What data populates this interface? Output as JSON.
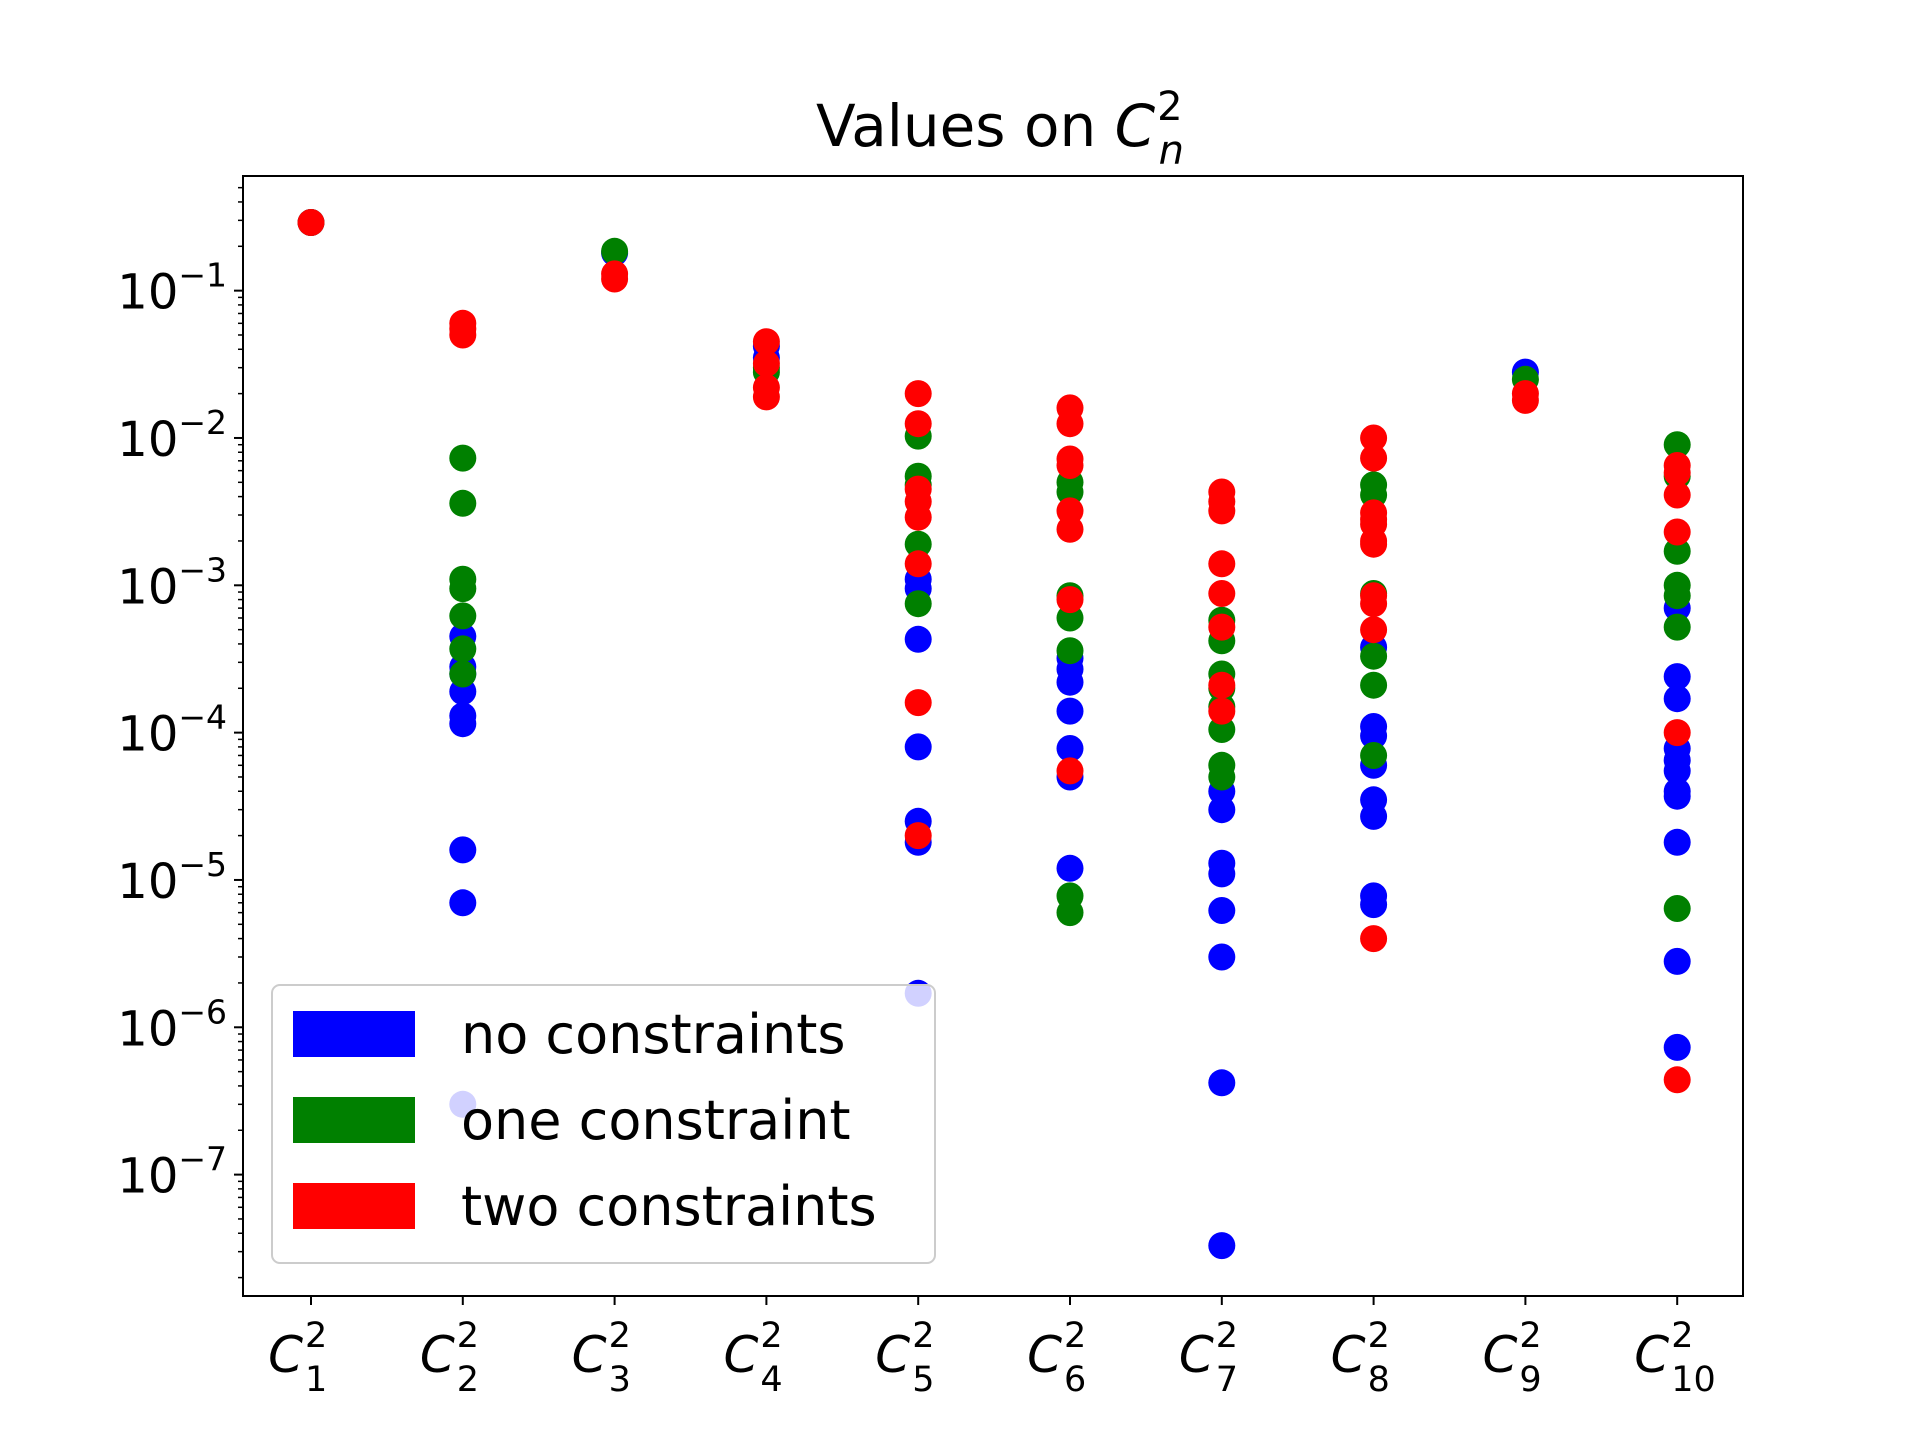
{
  "chart_data": {
    "type": "scatter",
    "title": {
      "prefix": "Values on ",
      "base": "C",
      "sup": "2",
      "sub": "n"
    },
    "xlabel": "",
    "ylabel": "",
    "y_scale": "log",
    "ylim": [
      1.5e-08,
      0.6
    ],
    "grid": false,
    "legend_position": "lower-left",
    "categories": [
      {
        "base": "C",
        "sup": "2",
        "sub": "1"
      },
      {
        "base": "C",
        "sup": "2",
        "sub": "2"
      },
      {
        "base": "C",
        "sup": "2",
        "sub": "3"
      },
      {
        "base": "C",
        "sup": "2",
        "sub": "4"
      },
      {
        "base": "C",
        "sup": "2",
        "sub": "5"
      },
      {
        "base": "C",
        "sup": "2",
        "sub": "6"
      },
      {
        "base": "C",
        "sup": "2",
        "sub": "7"
      },
      {
        "base": "C",
        "sup": "2",
        "sub": "8"
      },
      {
        "base": "C",
        "sup": "2",
        "sub": "9"
      },
      {
        "base": "C",
        "sup": "2",
        "sub": "10"
      }
    ],
    "y_ticks": [
      {
        "value": 0.1,
        "base": "10",
        "exp": "−1"
      },
      {
        "value": 0.01,
        "base": "10",
        "exp": "−2"
      },
      {
        "value": 0.001,
        "base": "10",
        "exp": "−3"
      },
      {
        "value": 0.0001,
        "base": "10",
        "exp": "−4"
      },
      {
        "value": 1e-05,
        "base": "10",
        "exp": "−5"
      },
      {
        "value": 1e-06,
        "base": "10",
        "exp": "−6"
      },
      {
        "value": 1e-07,
        "base": "10",
        "exp": "−7"
      }
    ],
    "series": [
      {
        "name": "no constraints",
        "color": "#0000ff",
        "points": [
          [
            1,
            0.29
          ],
          [
            2,
            0.00045
          ],
          [
            2,
            0.00028
          ],
          [
            2,
            0.00025
          ],
          [
            2,
            0.00019
          ],
          [
            2,
            0.00013
          ],
          [
            2,
            0.000115
          ],
          [
            2,
            1.6e-05
          ],
          [
            2,
            7e-06
          ],
          [
            2,
            3e-07
          ],
          [
            3,
            0.18
          ],
          [
            4,
            0.042
          ],
          [
            4,
            0.035
          ],
          [
            5,
            0.0011
          ],
          [
            5,
            0.00095
          ],
          [
            5,
            0.00043
          ],
          [
            5,
            8e-05
          ],
          [
            5,
            2.5e-05
          ],
          [
            5,
            1.8e-05
          ],
          [
            5,
            1.7e-06
          ],
          [
            6,
            0.00032
          ],
          [
            6,
            0.00027
          ],
          [
            6,
            0.00022
          ],
          [
            6,
            0.00014
          ],
          [
            6,
            7.8e-05
          ],
          [
            6,
            5e-05
          ],
          [
            6,
            1.2e-05
          ],
          [
            7,
            4e-05
          ],
          [
            7,
            3e-05
          ],
          [
            7,
            1.3e-05
          ],
          [
            7,
            1.1e-05
          ],
          [
            7,
            6.2e-06
          ],
          [
            7,
            3e-06
          ],
          [
            7,
            4.2e-07
          ],
          [
            7,
            3.3e-08
          ],
          [
            8,
            0.00038
          ],
          [
            8,
            0.00011
          ],
          [
            8,
            9.5e-05
          ],
          [
            8,
            6e-05
          ],
          [
            8,
            3.5e-05
          ],
          [
            8,
            2.7e-05
          ],
          [
            8,
            7.8e-06
          ],
          [
            8,
            6.8e-06
          ],
          [
            9,
            0.028
          ],
          [
            10,
            0.0007
          ],
          [
            10,
            0.00024
          ],
          [
            10,
            0.00017
          ],
          [
            10,
            7.8e-05
          ],
          [
            10,
            6.5e-05
          ],
          [
            10,
            5.5e-05
          ],
          [
            10,
            4e-05
          ],
          [
            10,
            3.7e-05
          ],
          [
            10,
            1.8e-05
          ],
          [
            10,
            2.8e-06
          ],
          [
            10,
            7.3e-07
          ]
        ]
      },
      {
        "name": "one constraint",
        "color": "#008000",
        "points": [
          [
            1,
            0.29
          ],
          [
            2,
            0.0073
          ],
          [
            2,
            0.0036
          ],
          [
            2,
            0.0011
          ],
          [
            2,
            0.00095
          ],
          [
            2,
            0.00062
          ],
          [
            2,
            0.00037
          ],
          [
            2,
            0.00025
          ],
          [
            3,
            0.185
          ],
          [
            4,
            0.03
          ],
          [
            4,
            0.028
          ],
          [
            5,
            0.0103
          ],
          [
            5,
            0.0055
          ],
          [
            5,
            0.0048
          ],
          [
            5,
            0.0019
          ],
          [
            5,
            0.00075
          ],
          [
            6,
            0.005
          ],
          [
            6,
            0.0043
          ],
          [
            6,
            0.00085
          ],
          [
            6,
            0.0006
          ],
          [
            6,
            0.00036
          ],
          [
            6,
            7.8e-06
          ],
          [
            6,
            6e-06
          ],
          [
            7,
            0.00058
          ],
          [
            7,
            0.00042
          ],
          [
            7,
            0.00025
          ],
          [
            7,
            0.0002
          ],
          [
            7,
            0.00015
          ],
          [
            7,
            0.000105
          ],
          [
            7,
            6e-05
          ],
          [
            7,
            5e-05
          ],
          [
            8,
            0.0048
          ],
          [
            8,
            0.0041
          ],
          [
            8,
            0.00088
          ],
          [
            8,
            0.00033
          ],
          [
            8,
            0.00021
          ],
          [
            8,
            7e-05
          ],
          [
            9,
            0.025
          ],
          [
            10,
            0.009
          ],
          [
            10,
            0.0055
          ],
          [
            10,
            0.0017
          ],
          [
            10,
            0.001
          ],
          [
            10,
            0.00085
          ],
          [
            10,
            0.00052
          ],
          [
            10,
            6.4e-06
          ]
        ]
      },
      {
        "name": "two constraints",
        "color": "#ff0000",
        "points": [
          [
            1,
            0.29
          ],
          [
            2,
            0.06
          ],
          [
            2,
            0.055
          ],
          [
            2,
            0.05
          ],
          [
            3,
            0.13
          ],
          [
            3,
            0.12
          ],
          [
            4,
            0.045
          ],
          [
            4,
            0.032
          ],
          [
            4,
            0.022
          ],
          [
            4,
            0.019
          ],
          [
            5,
            0.02
          ],
          [
            5,
            0.0125
          ],
          [
            5,
            0.0045
          ],
          [
            5,
            0.0037
          ],
          [
            5,
            0.0029
          ],
          [
            5,
            0.0014
          ],
          [
            5,
            0.00016
          ],
          [
            5,
            2e-05
          ],
          [
            6,
            0.016
          ],
          [
            6,
            0.0125
          ],
          [
            6,
            0.0072
          ],
          [
            6,
            0.0065
          ],
          [
            6,
            0.0032
          ],
          [
            6,
            0.0024
          ],
          [
            6,
            0.0008
          ],
          [
            6,
            5.5e-05
          ],
          [
            7,
            0.0043
          ],
          [
            7,
            0.0037
          ],
          [
            7,
            0.0032
          ],
          [
            7,
            0.0014
          ],
          [
            7,
            0.00088
          ],
          [
            7,
            0.00052
          ],
          [
            7,
            0.00021
          ],
          [
            7,
            0.00014
          ],
          [
            8,
            0.01
          ],
          [
            8,
            0.0073
          ],
          [
            8,
            0.0031
          ],
          [
            8,
            0.0028
          ],
          [
            8,
            0.0026
          ],
          [
            8,
            0.002
          ],
          [
            8,
            0.0019
          ],
          [
            8,
            0.00085
          ],
          [
            8,
            0.00075
          ],
          [
            8,
            0.0005
          ],
          [
            8,
            4e-06
          ],
          [
            9,
            0.02
          ],
          [
            9,
            0.018
          ],
          [
            10,
            0.0065
          ],
          [
            10,
            0.0058
          ],
          [
            10,
            0.0041
          ],
          [
            10,
            0.0023
          ],
          [
            10,
            0.0001
          ],
          [
            10,
            4.4e-07
          ]
        ]
      }
    ]
  }
}
